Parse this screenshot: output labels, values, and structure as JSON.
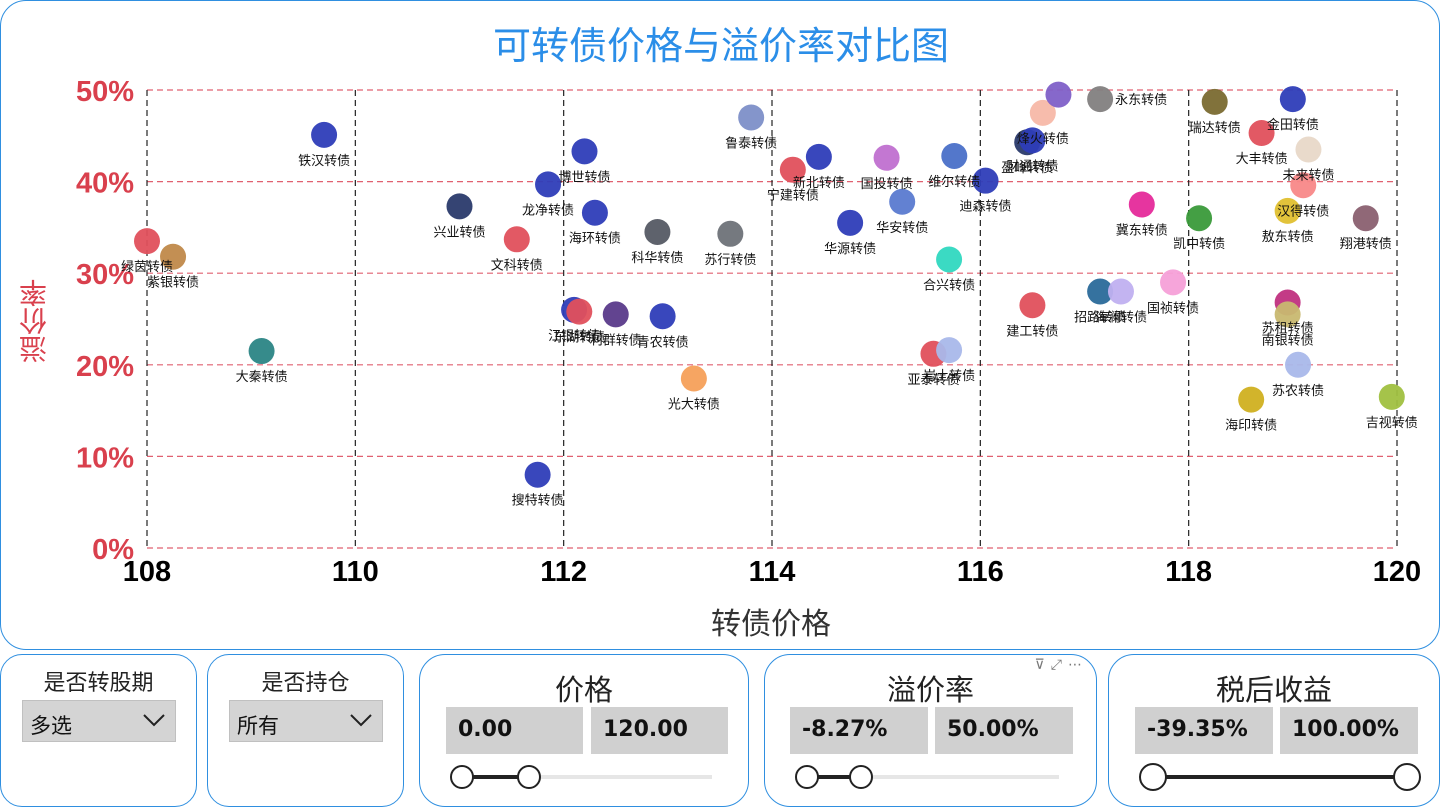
{
  "chart_data": {
    "type": "scatter",
    "title": "可转债价格与溢价率对比图",
    "xlabel": "转债价格",
    "ylabel": "溢价率",
    "xlim": [
      108,
      120
    ],
    "ylim": [
      0,
      50
    ],
    "x_ticks": [
      "108",
      "110",
      "112",
      "114",
      "116",
      "118",
      "120"
    ],
    "y_ticks": [
      "0%",
      "10%",
      "20%",
      "30%",
      "40%",
      "50%"
    ],
    "grid": true,
    "points": [
      {
        "label": "铁汉转债",
        "x": 109.7,
        "y": 45.1,
        "color": "#2e3db8"
      },
      {
        "label": "大秦转债",
        "x": 109.1,
        "y": 21.5,
        "color": "#2b8585"
      },
      {
        "label": "绿茵转债",
        "x": 108.0,
        "y": 33.5,
        "color": "#e0505c"
      },
      {
        "label": "紫银转债",
        "x": 108.25,
        "y": 31.8,
        "color": "#c0894a"
      },
      {
        "label": "兴业转债",
        "x": 111.0,
        "y": 37.3,
        "color": "#2a3a6c"
      },
      {
        "label": "文科转债",
        "x": 111.55,
        "y": 33.7,
        "color": "#e0505c"
      },
      {
        "label": "龙净转债",
        "x": 111.85,
        "y": 39.7,
        "color": "#2e3db8"
      },
      {
        "label": "博世转债",
        "x": 112.2,
        "y": 43.3,
        "color": "#2e3db8"
      },
      {
        "label": "海环转债",
        "x": 112.3,
        "y": 36.6,
        "color": "#2e3db8"
      },
      {
        "label": "科华转债",
        "x": 112.9,
        "y": 34.5,
        "color": "#555a64"
      },
      {
        "label": "苏行转债",
        "x": 113.6,
        "y": 34.3,
        "color": "#6e7278"
      },
      {
        "label": "鲁泰转债",
        "x": 113.8,
        "y": 47.0,
        "color": "#7d8fc8"
      },
      {
        "label": "江银转债",
        "x": 112.1,
        "y": 26.0,
        "color": "#2e3db8"
      },
      {
        "label": "东湖转债",
        "x": 112.15,
        "y": 25.8,
        "color": "#e0505c"
      },
      {
        "label": "利群转债",
        "x": 112.5,
        "y": 25.5,
        "color": "#5a3a8a"
      },
      {
        "label": "青农转债",
        "x": 112.95,
        "y": 25.3,
        "color": "#2e3db8"
      },
      {
        "label": "搜特转债",
        "x": 111.75,
        "y": 8.0,
        "color": "#2e3db8"
      },
      {
        "label": "光大转债",
        "x": 113.25,
        "y": 18.5,
        "color": "#f5a05a"
      },
      {
        "label": "宁建转债",
        "x": 114.2,
        "y": 41.3,
        "color": "#e0505c"
      },
      {
        "label": "新北转债",
        "x": 114.45,
        "y": 42.7,
        "color": "#2e3db8"
      },
      {
        "label": "华源转债",
        "x": 114.75,
        "y": 35.5,
        "color": "#2e3db8"
      },
      {
        "label": "国投转债",
        "x": 115.1,
        "y": 42.6,
        "color": "#c070d0"
      },
      {
        "label": "华安转债",
        "x": 115.25,
        "y": 37.8,
        "color": "#5a7ad0"
      },
      {
        "label": "维尔转债",
        "x": 115.75,
        "y": 42.8,
        "color": "#4a70c8"
      },
      {
        "label": "合兴转债",
        "x": 115.7,
        "y": 31.5,
        "color": "#30d8c0"
      },
      {
        "label": "亚泰转债",
        "x": 115.55,
        "y": 21.2,
        "color": "#e0505c"
      },
      {
        "label": "岩土转债",
        "x": 115.7,
        "y": 21.6,
        "color": "#a9b8ea"
      },
      {
        "label": "迪森转债",
        "x": 116.05,
        "y": 40.1,
        "color": "#2e3db8"
      },
      {
        "label": "盈峰转债",
        "x": 116.45,
        "y": 44.3,
        "color": "#2a3a6c"
      },
      {
        "label": "财通转债",
        "x": 116.5,
        "y": 44.5,
        "color": "#2e3db8"
      },
      {
        "label": "烽火转债",
        "x": 116.6,
        "y": 47.5,
        "color": "#f7b8a8"
      },
      {
        "label": "永东转债",
        "x": 116.75,
        "y": 49.5,
        "color": "#8060c8"
      },
      {
        "label": "永东转债-2",
        "x": 117.15,
        "y": 49.0,
        "color": "#828080"
      },
      {
        "label": "建工转债",
        "x": 116.5,
        "y": 26.5,
        "color": "#e0505c"
      },
      {
        "label": "招路转债",
        "x": 117.15,
        "y": 28.0,
        "color": "#2a6a9a"
      },
      {
        "label": "海澜转债",
        "x": 117.35,
        "y": 28.0,
        "color": "#c0b0f0"
      },
      {
        "label": "冀东转债",
        "x": 117.55,
        "y": 37.5,
        "color": "#e52a9a"
      },
      {
        "label": "国祯转债",
        "x": 117.85,
        "y": 29.0,
        "color": "#f5a0d8"
      },
      {
        "label": "瑞达转债",
        "x": 118.25,
        "y": 48.7,
        "color": "#7a6a30"
      },
      {
        "label": "凯中转债",
        "x": 118.1,
        "y": 36.0,
        "color": "#3a9a3a"
      },
      {
        "label": "大丰转债",
        "x": 118.7,
        "y": 45.3,
        "color": "#e0505c"
      },
      {
        "label": "金田转债",
        "x": 119.0,
        "y": 49.0,
        "color": "#2e3db8"
      },
      {
        "label": "未来转债",
        "x": 119.15,
        "y": 43.5,
        "color": "#e8d8c8"
      },
      {
        "label": "汉得转债",
        "x": 119.1,
        "y": 39.6,
        "color": "#f88888"
      },
      {
        "label": "敖东转债",
        "x": 118.95,
        "y": 36.8,
        "color": "#e0c030"
      },
      {
        "label": "翔港转债",
        "x": 119.7,
        "y": 36.0,
        "color": "#8a6070"
      },
      {
        "label": "苏租转债",
        "x": 118.95,
        "y": 26.8,
        "color": "#c03080"
      },
      {
        "label": "南银转债",
        "x": 118.95,
        "y": 25.5,
        "color": "#c8b870"
      },
      {
        "label": "苏农转债",
        "x": 119.05,
        "y": 20.0,
        "color": "#a9b8ea"
      },
      {
        "label": "海印转债",
        "x": 118.6,
        "y": 16.2,
        "color": "#d0b020"
      },
      {
        "label": "吉视转债",
        "x": 119.95,
        "y": 16.5,
        "color": "#a0c040"
      }
    ]
  },
  "slicers": {
    "convert_period": {
      "title": "是否转股期",
      "value": "多选"
    },
    "holding": {
      "title": "是否持仓",
      "value": "所有"
    },
    "price": {
      "title": "价格",
      "min": "0.00",
      "max": "120.00",
      "lo": 0.0,
      "hi": 0.25
    },
    "premium": {
      "title": "溢价率",
      "min": "-8.27%",
      "max": "50.00%",
      "lo": 0.0,
      "hi": 0.19
    },
    "after_tax": {
      "title": "税后收益",
      "min": "-39.35%",
      "max": "100.00%",
      "lo": 0.0,
      "hi": 1.0
    }
  },
  "colors": {
    "accent": "#2b8ee8",
    "axis_red": "#d9404d",
    "grid_red": "#e06070"
  }
}
